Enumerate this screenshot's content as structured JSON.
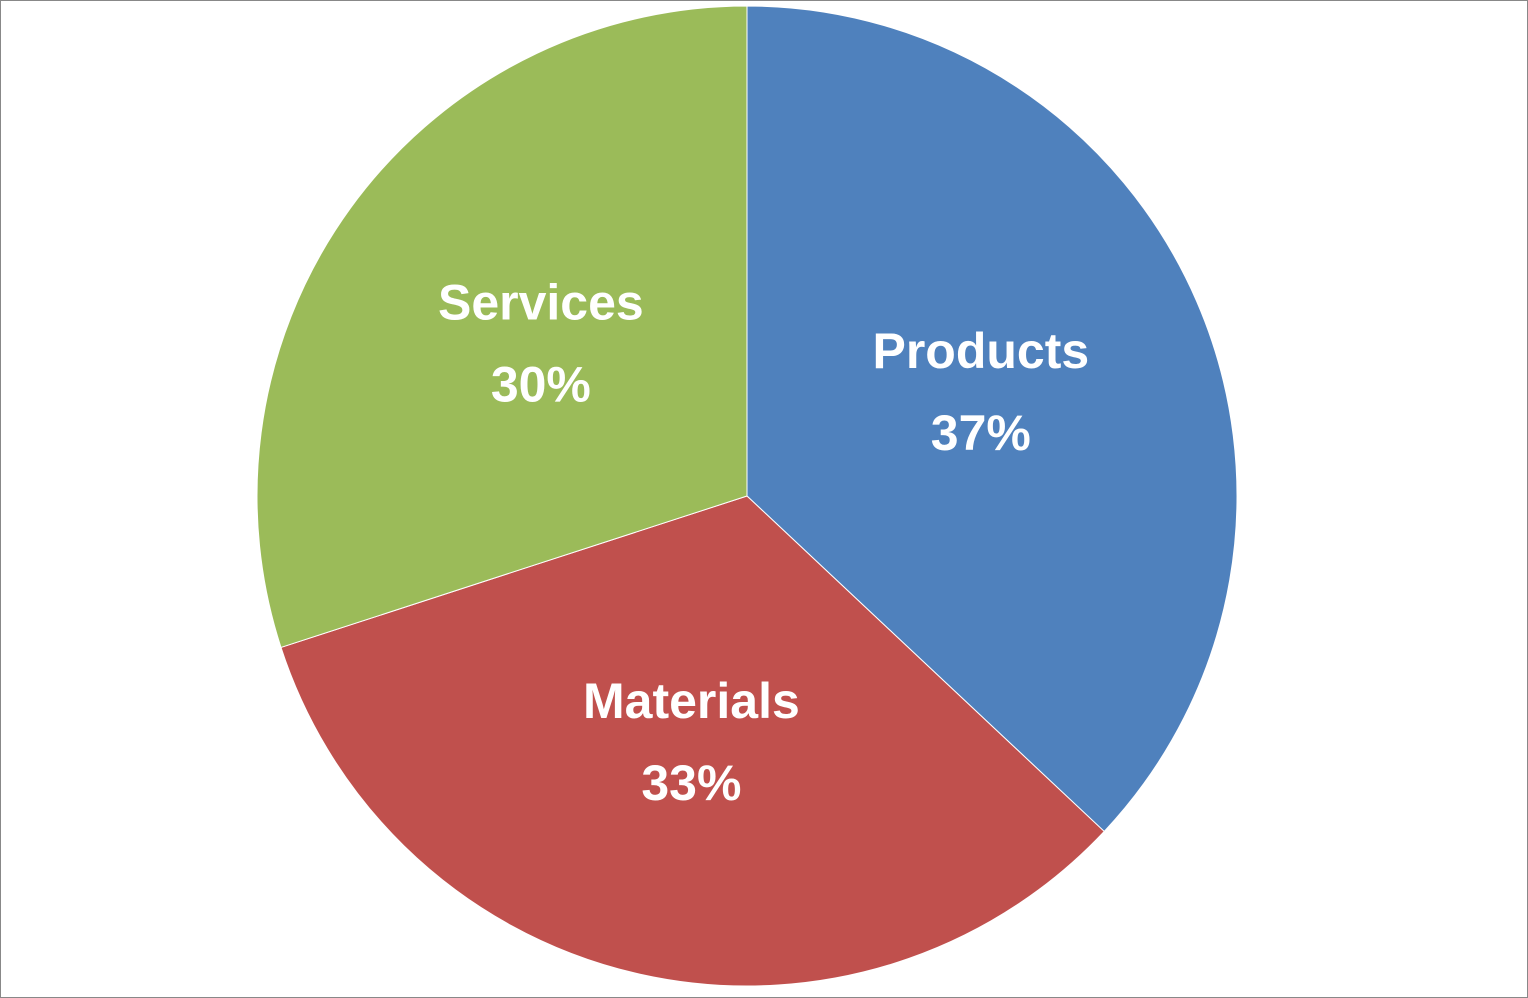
{
  "chart_data": {
    "type": "pie",
    "categories": [
      "Products",
      "Materials",
      "Services"
    ],
    "values": [
      37,
      33,
      30
    ],
    "value_labels": [
      "37%",
      "33%",
      "30%"
    ],
    "colors": [
      "#4f81bd",
      "#c0504d",
      "#9bbb59"
    ]
  }
}
